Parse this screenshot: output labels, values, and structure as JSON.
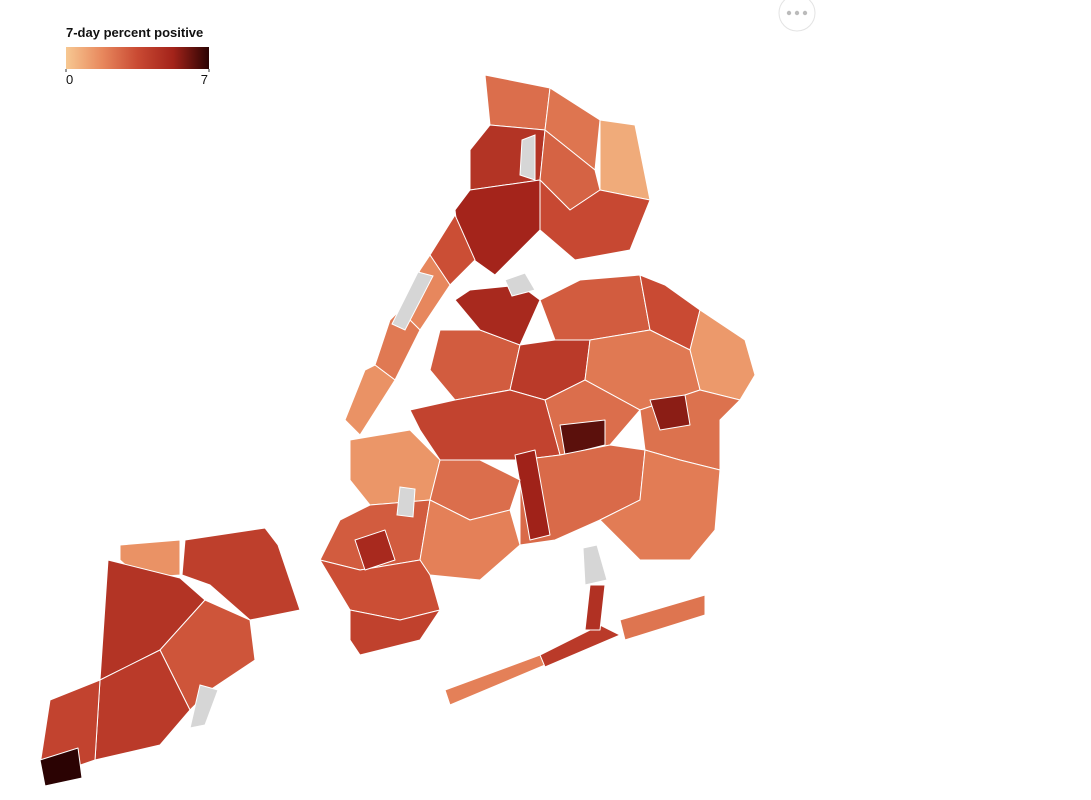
{
  "legend": {
    "title": "7-day percent positive",
    "ticks": [
      0,
      7
    ],
    "colors": [
      "#f7c892",
      "#e8895e",
      "#c94a33",
      "#a3231a",
      "#2b0303"
    ]
  },
  "map": {
    "values": [
      1.5,
      4.5,
      4.0,
      3.2,
      4.2,
      3.8,
      7,
      2.5,
      2.3,
      0.8,
      4.5,
      2.8,
      5.2,
      3.6,
      3.4,
      1.8,
      2.2,
      1.5,
      3.0,
      5.0,
      3.0,
      4.2,
      3.5,
      1.3,
      2.2,
      2.5,
      6.3,
      2.4,
      5.6,
      3.8,
      2.6,
      2.1,
      5.3,
      1.4,
      2.5,
      3.0,
      2.0,
      3.4,
      3.9,
      5.0,
      2.0,
      4.2,
      2.3,
      4.6
    ]
  }
}
